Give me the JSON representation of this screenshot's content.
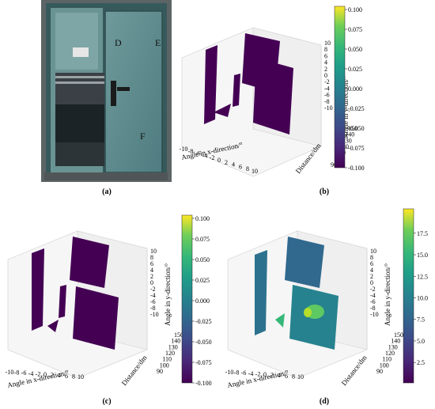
{
  "figure": {
    "captions": [
      "(a)",
      "(b)",
      "(c)",
      "(d)"
    ],
    "photo_labels": [
      "D",
      "E",
      "F"
    ],
    "colormap": "viridis"
  },
  "chart_data": [
    {
      "panel": "(b)",
      "type": "scatter",
      "xlabel": "Angle in x-direction/°",
      "ylabel": "Distance/dm",
      "zlabel": "Angle in y-direction/°",
      "x_ticks": [
        "-10",
        "-8",
        "-6",
        "-4",
        "-2",
        "0",
        "2",
        "4",
        "6",
        "8",
        "10"
      ],
      "y_ticks": [
        "90",
        "100",
        "110",
        "120",
        "130",
        "140",
        "150"
      ],
      "z_ticks": [
        "10",
        "8",
        "6",
        "4",
        "2",
        "0",
        "-2",
        "-4",
        "-6",
        "-8",
        "-10"
      ],
      "colorbar_ticks": [
        "0.100",
        "0.075",
        "0.050",
        "0.025",
        "0.000",
        "-0.025",
        "-0.050",
        "-0.075",
        "-0.100"
      ],
      "colorbar_range": [
        -0.1,
        0.1
      ]
    },
    {
      "panel": "(c)",
      "type": "scatter",
      "xlabel": "Angle in x-direction/°",
      "ylabel": "Distance/dm",
      "zlabel": "Angle in y-direction/°",
      "x_ticks": [
        "-10",
        "-8",
        "-6",
        "-4",
        "-2",
        "0",
        "2",
        "4",
        "6",
        "8",
        "10"
      ],
      "y_ticks": [
        "90",
        "100",
        "110",
        "120",
        "130",
        "140",
        "150"
      ],
      "z_ticks": [
        "10",
        "8",
        "6",
        "4",
        "2",
        "0",
        "-2",
        "-4",
        "-6",
        "-8",
        "-10"
      ],
      "colorbar_ticks": [
        "0.100",
        "0.075",
        "0.050",
        "0.025",
        "0.000",
        "-0.025",
        "-0.050",
        "-0.075",
        "-0.100"
      ],
      "colorbar_range": [
        -0.1,
        0.1
      ]
    },
    {
      "panel": "(d)",
      "type": "scatter",
      "xlabel": "Angle in x-direction/°",
      "ylabel": "Distance/dm",
      "zlabel": "Angle in y-direction/°",
      "x_ticks": [
        "-10",
        "-8",
        "-6",
        "-4",
        "-2",
        "0",
        "2",
        "4",
        "6",
        "8",
        "10"
      ],
      "y_ticks": [
        "90",
        "100",
        "110",
        "120",
        "130",
        "140",
        "150"
      ],
      "z_ticks": [
        "10",
        "8",
        "6",
        "4",
        "2",
        "0",
        "-2",
        "-4",
        "-6",
        "-8",
        "-10"
      ],
      "colorbar_ticks": [
        "17.5",
        "15.0",
        "12.5",
        "10.0",
        "7.5",
        "5.0",
        "2.5"
      ],
      "colorbar_range": [
        0.5,
        19.5
      ]
    }
  ]
}
